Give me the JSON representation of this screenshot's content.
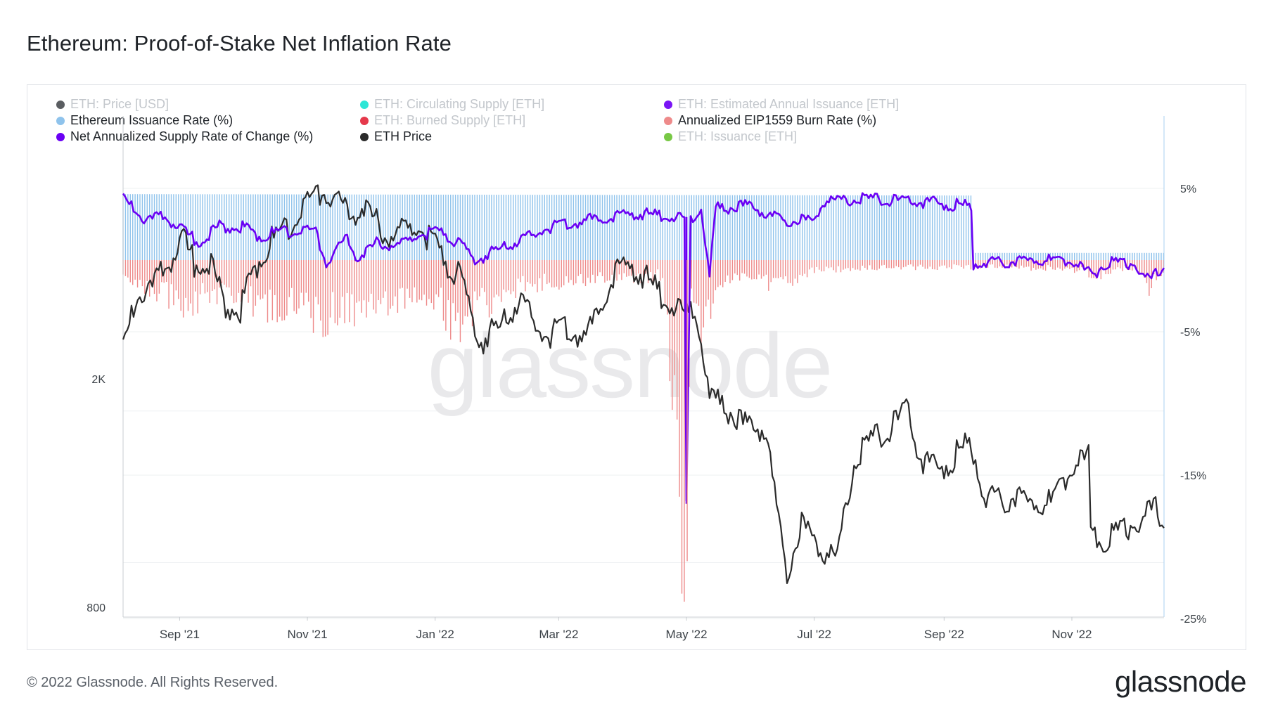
{
  "title": "Ethereum: Proof-of-Stake Net Inflation Rate",
  "footer": "© 2022 Glassnode. All Rights Reserved.",
  "brand": "glassnode",
  "watermark": "glassnode",
  "legend": [
    {
      "label": "ETH: Price [USD]",
      "color": "#5a5d61",
      "active": false
    },
    {
      "label": "ETH: Circulating Supply [ETH]",
      "color": "#2ee6d6",
      "active": false
    },
    {
      "label": "ETH: Estimated Annual Issuance [ETH]",
      "color": "#7a14f5",
      "active": false
    },
    {
      "label": "Ethereum Issuance Rate (%)",
      "color": "#8fc3ec",
      "active": true
    },
    {
      "label": "ETH: Burned Supply [ETH]",
      "color": "#e5394b",
      "active": false
    },
    {
      "label": "Annualized EIP1559 Burn Rate (%)",
      "color": "#ee8a8a",
      "active": true
    },
    {
      "label": "Net Annualized Supply Rate of Change (%)",
      "color": "#6a00f4",
      "active": true
    },
    {
      "label": "ETH Price",
      "color": "#2b2b2b",
      "active": true
    },
    {
      "label": "ETH: Issuance [ETH]",
      "color": "#78c845",
      "active": false
    }
  ],
  "chart_data": {
    "type": "line",
    "x_ticks": [
      "Sep '21",
      "Nov '21",
      "Jan '22",
      "Mar '22",
      "May '22",
      "Jul '22",
      "Sep '22",
      "Nov '22"
    ],
    "left_axis": {
      "ticks": [
        "2K",
        "800"
      ],
      "scale": "log"
    },
    "right_axis": {
      "ticks": [
        "5%",
        "-5%",
        "-15%",
        "-25%"
      ],
      "range": [
        -25,
        10
      ]
    },
    "x_range": [
      "2021-08-05",
      "2022-12-15"
    ],
    "series": [
      {
        "name": "Ethereum Issuance Rate (%)",
        "type": "bar",
        "color": "#8fc3ec",
        "points": [
          [
            "2021-08-05",
            4.6
          ],
          [
            "2022-09-14",
            4.5
          ],
          [
            "2022-09-15",
            0.5
          ],
          [
            "2022-12-15",
            0.5
          ]
        ]
      },
      {
        "name": "Annualized EIP1559 Burn Rate (%)",
        "type": "bar",
        "color": "#ee8a8a",
        "points": [
          [
            "2021-08-05",
            -1.0
          ],
          [
            "2021-08-20",
            -2.0
          ],
          [
            "2021-09-01",
            -3.0
          ],
          [
            "2021-09-15",
            -2.5
          ],
          [
            "2021-10-01",
            -2.2
          ],
          [
            "2021-10-10",
            -3.5
          ],
          [
            "2021-10-25",
            -3.0
          ],
          [
            "2021-11-05",
            -4.2
          ],
          [
            "2021-11-15",
            -3.5
          ],
          [
            "2021-12-01",
            -3.2
          ],
          [
            "2021-12-15",
            -2.8
          ],
          [
            "2021-12-30",
            -2.2
          ],
          [
            "2022-01-10",
            -4.5
          ],
          [
            "2022-01-25",
            -3.0
          ],
          [
            "2022-02-10",
            -1.8
          ],
          [
            "2022-03-01",
            -1.5
          ],
          [
            "2022-03-20",
            -1.2
          ],
          [
            "2022-04-05",
            -1.4
          ],
          [
            "2022-04-20",
            -1.0
          ],
          [
            "2022-05-01",
            -21.0
          ],
          [
            "2022-05-03",
            -2.0
          ],
          [
            "2022-05-10",
            -5.6
          ],
          [
            "2022-05-15",
            -1.5
          ],
          [
            "2022-06-01",
            -1.2
          ],
          [
            "2022-06-15",
            -1.8
          ],
          [
            "2022-07-01",
            -0.7
          ],
          [
            "2022-08-01",
            -0.5
          ],
          [
            "2022-09-01",
            -0.5
          ],
          [
            "2022-10-01",
            -0.5
          ],
          [
            "2022-11-01",
            -0.6
          ],
          [
            "2022-11-12",
            -1.1
          ],
          [
            "2022-12-01",
            -0.5
          ],
          [
            "2022-12-08",
            -1.9
          ],
          [
            "2022-12-15",
            -0.8
          ]
        ]
      },
      {
        "name": "Net Annualized Supply Rate of Change (%)",
        "type": "line",
        "color": "#6a00f4",
        "points": [
          [
            "2021-08-05",
            4.5
          ],
          [
            "2021-08-15",
            3.0
          ],
          [
            "2021-08-25",
            3.2
          ],
          [
            "2021-09-05",
            2.0
          ],
          [
            "2021-09-10",
            1.4
          ],
          [
            "2021-09-20",
            2.6
          ],
          [
            "2021-10-01",
            2.5
          ],
          [
            "2021-10-10",
            1.8
          ],
          [
            "2021-10-20",
            2.3
          ],
          [
            "2021-11-05",
            2.2
          ],
          [
            "2021-11-10",
            0.0
          ],
          [
            "2021-11-20",
            1.7
          ],
          [
            "2021-11-25",
            0.4
          ],
          [
            "2021-12-05",
            1.5
          ],
          [
            "2021-12-15",
            1.2
          ],
          [
            "2021-12-25",
            2.0
          ],
          [
            "2022-01-05",
            2.2
          ],
          [
            "2022-01-15",
            1.0
          ],
          [
            "2022-01-20",
            0.2
          ],
          [
            "2022-02-01",
            1.0
          ],
          [
            "2022-02-10",
            1.5
          ],
          [
            "2022-02-25",
            2.5
          ],
          [
            "2022-03-10",
            2.9
          ],
          [
            "2022-03-25",
            3.2
          ],
          [
            "2022-04-05",
            3.5
          ],
          [
            "2022-04-20",
            3.3
          ],
          [
            "2022-04-30",
            3.0
          ],
          [
            "2022-05-01",
            -17.0
          ],
          [
            "2022-05-03",
            3.0
          ],
          [
            "2022-05-08",
            3.8
          ],
          [
            "2022-05-12",
            -1.0
          ],
          [
            "2022-05-15",
            3.8
          ],
          [
            "2022-06-01",
            4.0
          ],
          [
            "2022-06-15",
            3.0
          ],
          [
            "2022-07-01",
            3.0
          ],
          [
            "2022-07-05",
            4.4
          ],
          [
            "2022-08-01",
            4.5
          ],
          [
            "2022-09-14",
            4.0
          ],
          [
            "2022-09-15",
            0.0
          ],
          [
            "2022-10-01",
            0.1
          ],
          [
            "2022-11-01",
            0.2
          ],
          [
            "2022-11-12",
            -1.0
          ],
          [
            "2022-11-15",
            0.0
          ],
          [
            "2022-12-01",
            0.0
          ],
          [
            "2022-12-08",
            -1.3
          ],
          [
            "2022-12-15",
            -0.2
          ]
        ]
      },
      {
        "name": "ETH Price",
        "type": "line",
        "color": "#2b2b2b",
        "points": [
          [
            "2021-08-05",
            2450
          ],
          [
            "2021-08-12",
            3050
          ],
          [
            "2021-08-20",
            3200
          ],
          [
            "2021-09-03",
            3850
          ],
          [
            "2021-09-08",
            3500
          ],
          [
            "2021-09-15",
            3550
          ],
          [
            "2021-09-22",
            3000
          ],
          [
            "2021-09-30",
            2900
          ],
          [
            "2021-10-08",
            3500
          ],
          [
            "2021-10-15",
            3850
          ],
          [
            "2021-10-28",
            4300
          ],
          [
            "2021-11-08",
            4750
          ],
          [
            "2021-11-20",
            4300
          ],
          [
            "2021-11-28",
            4450
          ],
          [
            "2021-12-05",
            4100
          ],
          [
            "2021-12-12",
            3950
          ],
          [
            "2021-12-25",
            4050
          ],
          [
            "2022-01-05",
            3600
          ],
          [
            "2022-01-12",
            3350
          ],
          [
            "2022-01-22",
            2550
          ],
          [
            "2022-02-01",
            2700
          ],
          [
            "2022-02-10",
            3000
          ],
          [
            "2022-02-22",
            2600
          ],
          [
            "2022-03-05",
            2700
          ],
          [
            "2022-03-15",
            2600
          ],
          [
            "2022-03-28",
            3400
          ],
          [
            "2022-04-05",
            3500
          ],
          [
            "2022-04-20",
            3050
          ],
          [
            "2022-04-30",
            2800
          ],
          [
            "2022-05-05",
            2950
          ],
          [
            "2022-05-12",
            2000
          ],
          [
            "2022-05-20",
            1950
          ],
          [
            "2022-05-28",
            1800
          ],
          [
            "2022-06-08",
            1800
          ],
          [
            "2022-06-13",
            1250
          ],
          [
            "2022-06-18",
            1000
          ],
          [
            "2022-06-25",
            1200
          ],
          [
            "2022-07-05",
            1100
          ],
          [
            "2022-07-12",
            1050
          ],
          [
            "2022-07-20",
            1550
          ],
          [
            "2022-07-28",
            1700
          ],
          [
            "2022-08-10",
            1850
          ],
          [
            "2022-08-14",
            1950
          ],
          [
            "2022-08-20",
            1600
          ],
          [
            "2022-08-28",
            1500
          ],
          [
            "2022-09-08",
            1620
          ],
          [
            "2022-09-14",
            1700
          ],
          [
            "2022-09-20",
            1350
          ],
          [
            "2022-09-28",
            1330
          ],
          [
            "2022-10-05",
            1350
          ],
          [
            "2022-10-12",
            1300
          ],
          [
            "2022-10-22",
            1310
          ],
          [
            "2022-11-02",
            1550
          ],
          [
            "2022-11-09",
            1580
          ],
          [
            "2022-11-10",
            1150
          ],
          [
            "2022-11-20",
            1140
          ],
          [
            "2022-11-28",
            1200
          ],
          [
            "2022-12-08",
            1260
          ],
          [
            "2022-12-12",
            1275
          ],
          [
            "2022-12-15",
            1210
          ]
        ]
      }
    ]
  }
}
